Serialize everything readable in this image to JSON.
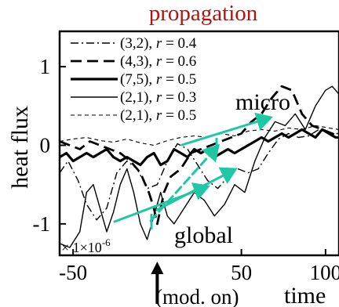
{
  "chart_data": {
    "type": "line",
    "title": "propagation",
    "xlabel": "time",
    "ylabel": "heat flux",
    "xlim": [
      -58,
      108
    ],
    "ylim": [
      -1.4,
      1.45
    ],
    "x_ticks": [
      {
        "value": -50,
        "label": "-50"
      },
      {
        "value": 50,
        "label": "50"
      },
      {
        "value": 100,
        "label": "100"
      }
    ],
    "y_ticks": [
      {
        "value": 1,
        "label": "1"
      },
      {
        "value": 0,
        "label": "0"
      },
      {
        "value": -1,
        "label": "-1"
      }
    ],
    "y_scale_note": {
      "prefix": "× 1×10",
      "exponent": "-6"
    },
    "legend_position": "top-left",
    "series": [
      {
        "name": "(3,2), r = 0.4",
        "mode": "(3,2)",
        "r_label": "r",
        "r_value": "= 0.4",
        "dash": "dashdot",
        "width": 1.4,
        "x": [
          -58,
          -53,
          -47,
          -42,
          -36,
          -30,
          -24,
          -18,
          -12,
          -6,
          0,
          6,
          12,
          18,
          24,
          30,
          36,
          42,
          48,
          54,
          60,
          66,
          72,
          78,
          84,
          90,
          96,
          102,
          108
        ],
        "y": [
          -0.35,
          -0.2,
          -0.45,
          -0.75,
          -0.95,
          -0.8,
          -0.35,
          -0.2,
          -0.3,
          -0.55,
          -0.5,
          -0.2,
          0.02,
          -0.05,
          -0.25,
          -0.45,
          -0.55,
          -0.4,
          -0.3,
          -0.35,
          -0.3,
          -0.1,
          0.08,
          0.15,
          0.1,
          0.12,
          0.2,
          0.15,
          0.15
        ]
      },
      {
        "name": "(4,3), r = 0.6",
        "mode": "(4,3)",
        "r_label": "r",
        "r_value": "= 0.6",
        "dash": "longdash",
        "width": 2.8,
        "x": [
          -58,
          -52,
          -46,
          -40,
          -34,
          -28,
          -22,
          -16,
          -10,
          -5,
          -2,
          0,
          4,
          8,
          14,
          20,
          26,
          32,
          38,
          44,
          50,
          56,
          62,
          68,
          74,
          80,
          86,
          92,
          98,
          104,
          108
        ],
        "y": [
          0.05,
          0.0,
          -0.05,
          0.05,
          0.0,
          -0.05,
          -0.1,
          -0.2,
          -0.35,
          -0.6,
          -0.8,
          -1.0,
          -0.6,
          -0.4,
          -0.3,
          -0.1,
          -0.05,
          0.0,
          0.05,
          0.1,
          0.15,
          0.3,
          0.4,
          0.6,
          0.75,
          0.7,
          0.4,
          0.25,
          0.2,
          0.15,
          0.1
        ]
      },
      {
        "name": "(7,5), r = 0.5",
        "mode": "(7,5)",
        "r_label": "r",
        "r_value": "= 0.5",
        "dash": "solid",
        "width": 3.2,
        "x": [
          -58,
          -54,
          -50,
          -46,
          -42,
          -38,
          -34,
          -30,
          -26,
          -22,
          -18,
          -14,
          -10,
          -6,
          -2,
          2,
          6,
          10,
          14,
          18,
          22,
          26,
          30,
          34,
          38,
          42,
          46,
          50,
          54,
          58,
          62,
          66,
          70,
          74,
          78,
          82,
          86,
          90,
          94,
          98,
          102,
          106,
          108
        ],
        "y": [
          -0.15,
          -0.1,
          -0.2,
          -0.15,
          -0.1,
          -0.15,
          -0.1,
          -0.05,
          -0.15,
          -0.2,
          -0.15,
          -0.2,
          -0.25,
          -0.15,
          -0.1,
          -0.25,
          -0.2,
          -0.05,
          -0.1,
          -0.15,
          -0.05,
          -0.1,
          -0.05,
          -0.15,
          -0.1,
          -0.05,
          -0.1,
          -0.05,
          0.0,
          0.05,
          0.1,
          0.05,
          0.1,
          0.15,
          0.1,
          0.15,
          0.2,
          0.15,
          0.1,
          0.2,
          0.15,
          0.1,
          0.1
        ]
      },
      {
        "name": "(2,1), r = 0.3",
        "mode": "(2,1)",
        "r_label": "r",
        "r_value": "= 0.3",
        "dash": "solid",
        "width": 1.4,
        "x": [
          -58,
          -52,
          -46,
          -42,
          -38,
          -34,
          -30,
          -26,
          -22,
          -18,
          -14,
          -10,
          -6,
          -2,
          2,
          6,
          10,
          16,
          22,
          28,
          34,
          40,
          46,
          52,
          58,
          64,
          70,
          76,
          82,
          88,
          94,
          100,
          104,
          108
        ],
        "y": [
          -1.25,
          -1.3,
          -1.1,
          -0.6,
          -0.5,
          -0.8,
          -1.1,
          -0.85,
          -0.5,
          -0.3,
          -0.6,
          -1.0,
          -1.2,
          -0.9,
          -0.6,
          -0.9,
          -1.0,
          -0.8,
          -0.6,
          -0.7,
          -0.9,
          -0.75,
          -0.5,
          -0.6,
          -0.2,
          0.1,
          0.3,
          0.25,
          0.4,
          0.2,
          0.5,
          0.7,
          0.75,
          0.65
        ]
      },
      {
        "name": "(2,1), r = 0.5",
        "mode": "(2,1)",
        "r_label": "r",
        "r_value": "= 0.5",
        "dash": "shortdash",
        "width": 1.1,
        "x": [
          -58,
          -50,
          -42,
          -34,
          -26,
          -18,
          -10,
          -2,
          6,
          14,
          22,
          30,
          38,
          46,
          54,
          62,
          70,
          78,
          86,
          94,
          102,
          108
        ],
        "y": [
          0.05,
          0.08,
          0.1,
          0.06,
          0.04,
          0.08,
          0.03,
          0.0,
          0.06,
          0.1,
          0.12,
          0.1,
          0.15,
          0.12,
          0.18,
          0.2,
          0.18,
          0.22,
          0.2,
          0.25,
          0.22,
          0.2
        ]
      }
    ],
    "annotations": {
      "micro": "micro",
      "global": "global",
      "mod_on": "(mod. on)",
      "mod_on_x": 0
    },
    "arrow_color": "#1ec8a5"
  }
}
